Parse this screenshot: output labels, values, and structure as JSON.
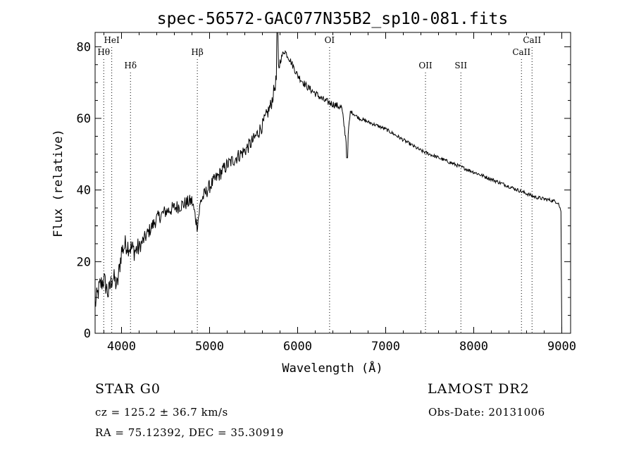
{
  "chart_data": {
    "type": "line",
    "title": "spec-56572-GAC077N35B2_sp10-081.fits",
    "xlabel": "Wavelength (Å)",
    "ylabel": "Flux (relative)",
    "xlim": [
      3700,
      9100
    ],
    "ylim": [
      0,
      84
    ],
    "x_ticks": [
      4000,
      5000,
      6000,
      7000,
      8000,
      9000
    ],
    "y_ticks": [
      0,
      20,
      40,
      60,
      80
    ],
    "grid": false,
    "series": [
      {
        "x": [
          3700,
          3750,
          3800,
          3850,
          3900,
          3950,
          4000,
          4050,
          4100,
          4150,
          4200,
          4300,
          4400,
          4500,
          4600,
          4700,
          4800,
          4860,
          4900,
          5000,
          5100,
          5200,
          5300,
          5400,
          5500,
          5600,
          5700,
          5750,
          5800,
          5850,
          5900,
          6000,
          6100,
          6200,
          6300,
          6400,
          6500,
          6560,
          6600,
          6700,
          6800,
          6900,
          7000,
          7200,
          7400,
          7600,
          7800,
          8000,
          8200,
          8400,
          8500,
          8600,
          8700,
          8800,
          8900,
          8960,
          8990,
          9000
        ],
        "y": [
          8,
          13,
          15,
          11,
          16,
          13,
          23,
          25,
          24,
          23,
          24,
          28,
          32,
          34,
          35,
          36,
          37,
          30,
          37,
          41,
          44,
          47,
          49,
          51,
          54,
          58,
          64,
          70,
          76,
          79,
          77,
          72,
          69,
          67,
          65,
          64,
          63,
          52,
          62,
          60,
          59,
          58,
          57,
          54,
          51,
          49,
          47,
          45,
          43,
          41,
          40,
          39,
          38,
          37.5,
          37,
          36.5,
          34,
          0
        ]
      }
    ],
    "spectral_lines": [
      {
        "label": "Hθ",
        "wavelength": 3798,
        "row": 2
      },
      {
        "label": "HeI",
        "wavelength": 3889,
        "row": 1
      },
      {
        "label": "Hδ",
        "wavelength": 4102,
        "row": 3
      },
      {
        "label": "Hβ",
        "wavelength": 4861,
        "row": 2
      },
      {
        "label": "OI",
        "wavelength": 6363,
        "row": 1
      },
      {
        "label": "OII",
        "wavelength": 7452,
        "row": 3
      },
      {
        "label": "SII",
        "wavelength": 7854,
        "row": 3
      },
      {
        "label": "CaII",
        "wavelength": 8542,
        "row": 2
      },
      {
        "label": "CaII",
        "wavelength": 8662,
        "row": 1
      }
    ]
  },
  "info": {
    "object_class": "STAR    G0",
    "survey": "LAMOST  DR2",
    "cz": "cz = 125.2 ± 36.7 km/s",
    "obs_date": "Obs-Date: 20131006",
    "coords": "RA =  75.12392, DEC =  35.30919"
  }
}
